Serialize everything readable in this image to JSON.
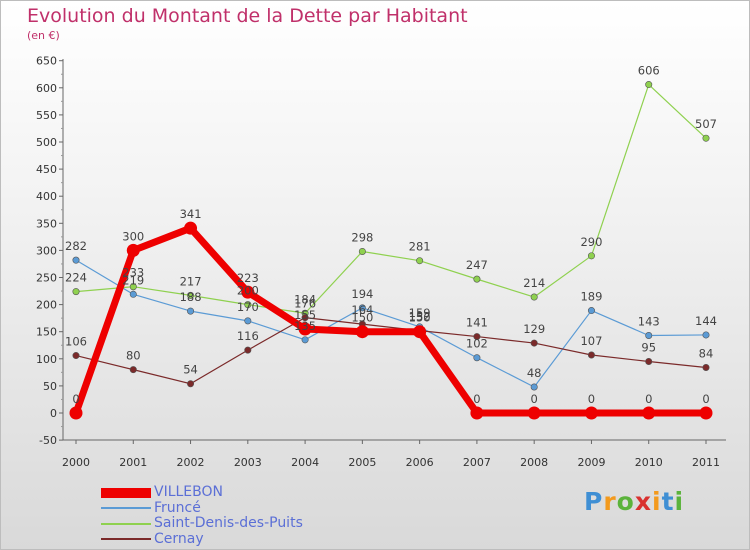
{
  "title": "Evolution du Montant de la Dette par Habitant",
  "unit": "(en €)",
  "brand": {
    "letters": [
      {
        "ch": "P",
        "color": "#3f8fd4"
      },
      {
        "ch": "r",
        "color": "#f39a1d"
      },
      {
        "ch": "o",
        "color": "#5bb33b"
      },
      {
        "ch": "x",
        "color": "#d9312f"
      },
      {
        "ch": "i",
        "color": "#f39a1d"
      },
      {
        "ch": "t",
        "color": "#3f8fd4"
      },
      {
        "ch": "i",
        "color": "#5bb33b"
      }
    ]
  },
  "chart_data": {
    "type": "line",
    "title": "Evolution du Montant de la Dette par Habitant",
    "ylabel": "(en €)",
    "xlabel": "",
    "x": [
      "2000",
      "2001",
      "2002",
      "2003",
      "2004",
      "2005",
      "2006",
      "2007",
      "2008",
      "2009",
      "2010",
      "2011"
    ],
    "ylim": [
      -50,
      650
    ],
    "yticks": [
      -50,
      0,
      50,
      100,
      150,
      200,
      250,
      300,
      350,
      400,
      450,
      500,
      550,
      600,
      650
    ],
    "grid": false,
    "legend_position": "bottom-left",
    "series": [
      {
        "name": "VILLEBON",
        "color": "#ee0000",
        "emphasis": true,
        "values": [
          0,
          300,
          341,
          223,
          155,
          150,
          150,
          0,
          0,
          0,
          0,
          0
        ],
        "labels": [
          "0",
          "300",
          "341",
          "223",
          "155",
          "150",
          "150",
          "0",
          "0",
          "0",
          "0",
          "0"
        ]
      },
      {
        "name": "Fruncé",
        "color": "#5b9bd5",
        "emphasis": false,
        "values": [
          282,
          219,
          188,
          170,
          135,
          194,
          159,
          102,
          48,
          189,
          143,
          144
        ],
        "labels": [
          "282",
          "219",
          "188",
          "170",
          "135",
          "194",
          "159",
          "102",
          "48",
          "189",
          "143",
          "144"
        ]
      },
      {
        "name": "Saint-Denis-des-Puits",
        "color": "#8fd14f",
        "emphasis": false,
        "values": [
          224,
          233,
          217,
          200,
          184,
          298,
          281,
          247,
          214,
          290,
          606,
          507
        ],
        "labels": [
          "224",
          "233",
          "217",
          "200",
          "184",
          "298",
          "281",
          "247",
          "214",
          "290",
          "606",
          "507"
        ]
      },
      {
        "name": "Cernay",
        "color": "#7b2a2a",
        "emphasis": false,
        "values": [
          106,
          80,
          54,
          116,
          176,
          164,
          152,
          141,
          129,
          107,
          95,
          84
        ],
        "labels": [
          "106",
          "80",
          "54",
          "116",
          "176",
          "164",
          "152",
          "141",
          "129",
          "107",
          "95",
          "84"
        ]
      }
    ]
  }
}
